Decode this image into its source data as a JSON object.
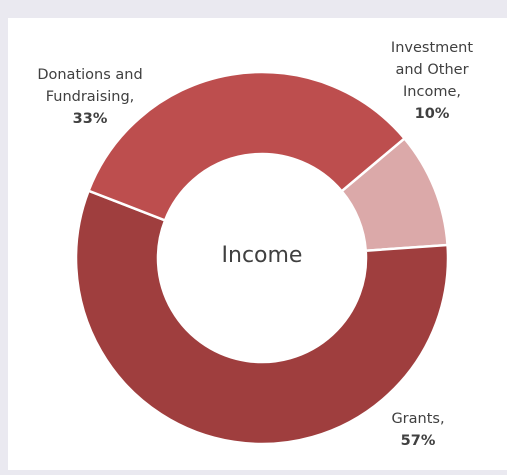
{
  "chart_data": {
    "type": "pie",
    "variant": "donut",
    "center_label": "Income",
    "slices": [
      {
        "label_lines": [
          "Investment",
          "and Other",
          "Income,"
        ],
        "value": 10,
        "value_label": "10%",
        "color": "#dba9a9"
      },
      {
        "label_lines": [
          "Grants,"
        ],
        "value": 57,
        "value_label": "57%",
        "color": "#9f3e3e"
      },
      {
        "label_lines": [
          "Donations and",
          "Fundraising,"
        ],
        "value": 33,
        "value_label": "33%",
        "color": "#bd4e4e"
      }
    ],
    "legend": "none"
  }
}
